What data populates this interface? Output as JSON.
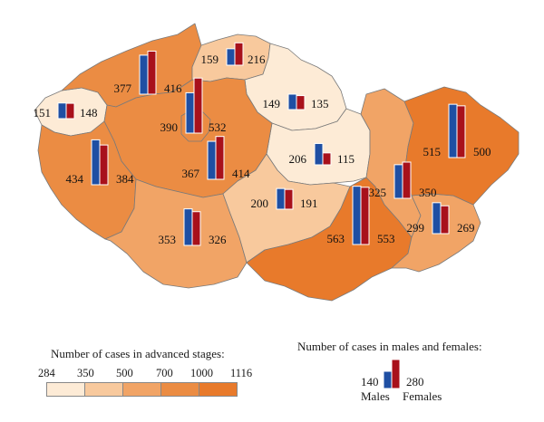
{
  "colors": {
    "class1": "#fdebd6",
    "class2": "#f8c99d",
    "class3": "#f1a466",
    "class4": "#eb8c43",
    "class5": "#e87a2b",
    "males": "#1f4fa3",
    "females": "#a8111b"
  },
  "regions": [
    {
      "id": "karlovy-vary",
      "class": 1,
      "males": 151,
      "females": 148
    },
    {
      "id": "usti",
      "class": 4,
      "males": 377,
      "females": 416
    },
    {
      "id": "liberec",
      "class": 2,
      "males": 159,
      "females": 216
    },
    {
      "id": "hradec-kralove",
      "class": 1,
      "males": 149,
      "females": 135
    },
    {
      "id": "pardubice",
      "class": 1,
      "males": 206,
      "females": 115
    },
    {
      "id": "prague",
      "class": 4,
      "males": 390,
      "females": 532
    },
    {
      "id": "central-bohemia",
      "class": 4,
      "males": 367,
      "females": 414
    },
    {
      "id": "plzen",
      "class": 4,
      "males": 434,
      "females": 384
    },
    {
      "id": "south-bohemia",
      "class": 3,
      "males": 353,
      "females": 326
    },
    {
      "id": "vysocina",
      "class": 2,
      "males": 200,
      "females": 191
    },
    {
      "id": "south-moravia",
      "class": 5,
      "males": 563,
      "females": 553
    },
    {
      "id": "olomouc",
      "class": 3,
      "males": 325,
      "females": 350
    },
    {
      "id": "zlin",
      "class": 3,
      "males": 299,
      "females": 269
    },
    {
      "id": "moravia-silesia",
      "class": 5,
      "males": 515,
      "females": 500
    }
  ],
  "legend_stages": {
    "title": "Number of cases in advanced stages:",
    "ticks": [
      "284",
      "350",
      "500",
      "700",
      "1000",
      "1116"
    ]
  },
  "legend_sex": {
    "title": "Number of cases in males and females:",
    "males_value": "140",
    "females_value": "280",
    "males_label": "Males",
    "females_label": "Females"
  }
}
